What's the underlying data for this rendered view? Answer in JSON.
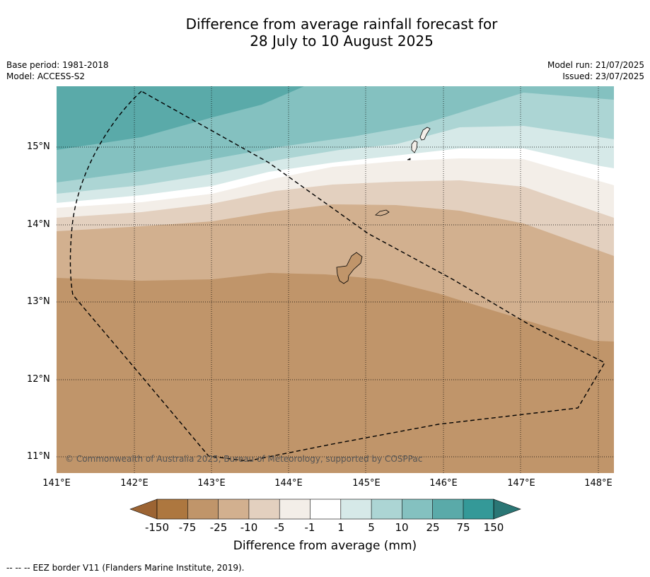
{
  "title_line1": "Difference from average rainfall forecast for",
  "title_line2": "28 July to 10 August 2025",
  "left_meta": {
    "base_period": "Base period: 1981-2018",
    "model": "Model: ACCESS-S2"
  },
  "right_meta": {
    "model_run": "Model run: 21/07/2025",
    "issued": "Issued: 23/07/2025"
  },
  "map": {
    "lat_labels": [
      "15°N",
      "14°N",
      "13°N",
      "12°N",
      "11°N"
    ],
    "lon_labels": [
      "141°E",
      "142°E",
      "143°E",
      "144°E",
      "145°E",
      "146°E",
      "147°E",
      "148°E"
    ],
    "copyright": "© Commonwealth of Australia 2025, Bureau of Meteorology, supported by COSPPac"
  },
  "colorbar": {
    "title": "Difference from average (mm)",
    "tick_labels": [
      "-150",
      "-75",
      "-25",
      "-10",
      "-5",
      "-1",
      "1",
      "5",
      "10",
      "25",
      "75",
      "150"
    ],
    "colors": {
      "below_min": "#9c6433",
      "bin_-150_-75": "#ad773f",
      "bin_-75_-25": "#c0956a",
      "bin_-25_-10": "#d2b08f",
      "bin_-10_-5": "#e3d0bf",
      "bin_-5_-1": "#f3eee8",
      "bin_-1_1": "#ffffff",
      "bin_1_5": "#d6e9e8",
      "bin_5_10": "#acd5d4",
      "bin_10_25": "#84c1c0",
      "bin_25_75": "#5aaaa9",
      "bin_75_150": "#349998",
      "above_max": "#2a7675"
    }
  },
  "footnote": "--  --  -- EEZ border V11 (Flanders Marine Institute, 2019)."
}
